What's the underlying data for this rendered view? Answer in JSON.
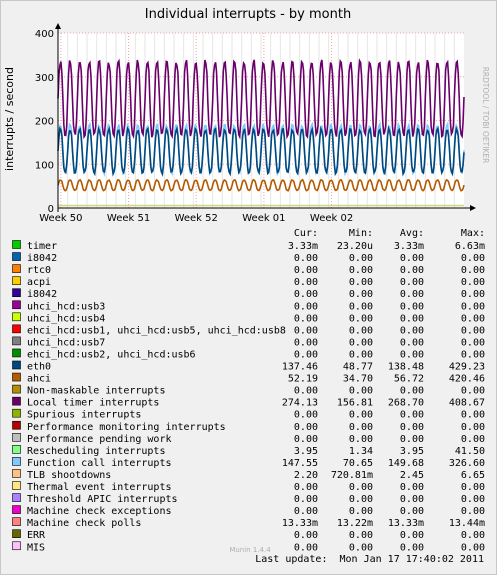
{
  "chart_data": {
    "type": "line",
    "title": "Individual interrupts - by month",
    "ylabel": "interrupts / second",
    "watermark": "RRDTOOL / TOBI OETIKER",
    "ylim": [
      0,
      400
    ],
    "y_ticks": [
      "0",
      "100",
      "200",
      "300",
      "400"
    ],
    "x_ticks": [
      "Week 50",
      "Week 51",
      "Week 52",
      "Week 01",
      "Week 02"
    ],
    "grid": true,
    "columns": [
      "Cur:",
      "Min:",
      "Avg:",
      "Max:"
    ],
    "series": [
      {
        "name": "timer",
        "color": "#00cc00",
        "cur": "3.33m",
        "min": "23.20u",
        "avg": "3.33m",
        "max": "6.63m"
      },
      {
        "name": "i8042",
        "color": "#0066b3",
        "cur": "0.00",
        "min": "0.00",
        "avg": "0.00",
        "max": "0.00"
      },
      {
        "name": "rtc0",
        "color": "#ff8000",
        "cur": "0.00",
        "min": "0.00",
        "avg": "0.00",
        "max": "0.00"
      },
      {
        "name": "acpi",
        "color": "#ffcc00",
        "cur": "0.00",
        "min": "0.00",
        "avg": "0.00",
        "max": "0.00"
      },
      {
        "name": "i8042",
        "color": "#330099",
        "cur": "0.00",
        "min": "0.00",
        "avg": "0.00",
        "max": "0.00"
      },
      {
        "name": "uhci_hcd:usb3",
        "color": "#990099",
        "cur": "0.00",
        "min": "0.00",
        "avg": "0.00",
        "max": "0.00"
      },
      {
        "name": "uhci_hcd:usb4",
        "color": "#ccff00",
        "cur": "0.00",
        "min": "0.00",
        "avg": "0.00",
        "max": "0.00"
      },
      {
        "name": "ehci_hcd:usb1, uhci_hcd:usb5, uhci_hcd:usb8",
        "color": "#ff0000",
        "cur": "0.00",
        "min": "0.00",
        "avg": "0.00",
        "max": "0.00"
      },
      {
        "name": "uhci_hcd:usb7",
        "color": "#808080",
        "cur": "0.00",
        "min": "0.00",
        "avg": "0.00",
        "max": "0.00"
      },
      {
        "name": "ehci_hcd:usb2, uhci_hcd:usb6",
        "color": "#008f00",
        "cur": "0.00",
        "min": "0.00",
        "avg": "0.00",
        "max": "0.00"
      },
      {
        "name": "eth0",
        "color": "#00487d",
        "cur": "137.46",
        "min": "48.77",
        "avg": "138.48",
        "max": "429.23"
      },
      {
        "name": "ahci",
        "color": "#b35a00",
        "cur": "52.19",
        "min": "34.70",
        "avg": "56.72",
        "max": "420.46"
      },
      {
        "name": "Non-maskable interrupts",
        "color": "#b38f00",
        "cur": "0.00",
        "min": "0.00",
        "avg": "0.00",
        "max": "0.00"
      },
      {
        "name": "Local timer interrupts",
        "color": "#6b006b",
        "cur": "274.13",
        "min": "156.81",
        "avg": "268.70",
        "max": "408.67"
      },
      {
        "name": "Spurious interrupts",
        "color": "#8fb300",
        "cur": "0.00",
        "min": "0.00",
        "avg": "0.00",
        "max": "0.00"
      },
      {
        "name": "Performance monitoring interrupts",
        "color": "#b30000",
        "cur": "0.00",
        "min": "0.00",
        "avg": "0.00",
        "max": "0.00"
      },
      {
        "name": "Performance pending work",
        "color": "#bebebe",
        "cur": "0.00",
        "min": "0.00",
        "avg": "0.00",
        "max": "0.00"
      },
      {
        "name": "Rescheduling interrupts",
        "color": "#80ff80",
        "cur": "3.95",
        "min": "1.34",
        "avg": "3.95",
        "max": "41.50"
      },
      {
        "name": "Function call interrupts",
        "color": "#80c9ff",
        "cur": "147.55",
        "min": "70.65",
        "avg": "149.68",
        "max": "326.60"
      },
      {
        "name": "TLB shootdowns",
        "color": "#ffc080",
        "cur": "2.20",
        "min": "720.81m",
        "avg": "2.45",
        "max": "6.65"
      },
      {
        "name": "Thermal event interrupts",
        "color": "#ffe680",
        "cur": "0.00",
        "min": "0.00",
        "avg": "0.00",
        "max": "0.00"
      },
      {
        "name": "Threshold APIC interrupts",
        "color": "#aa80ff",
        "cur": "0.00",
        "min": "0.00",
        "avg": "0.00",
        "max": "0.00"
      },
      {
        "name": "Machine check exceptions",
        "color": "#ee00cc",
        "cur": "0.00",
        "min": "0.00",
        "avg": "0.00",
        "max": "0.00"
      },
      {
        "name": "Machine check polls",
        "color": "#ff8080",
        "cur": "13.33m",
        "min": "13.22m",
        "avg": "13.33m",
        "max": "13.44m"
      },
      {
        "name": "ERR",
        "color": "#666600",
        "cur": "0.00",
        "min": "0.00",
        "avg": "0.00",
        "max": "0.00"
      },
      {
        "name": "MIS",
        "color": "#ffbfff",
        "cur": "0.00",
        "min": "0.00",
        "avg": "0.00",
        "max": "0.00"
      }
    ],
    "traces": {
      "Local timer interrupts": {
        "base": 250,
        "amp": 85,
        "period_days": 1.0
      },
      "Function call interrupts": {
        "base": 135,
        "amp": 55,
        "period_days": 1.0
      },
      "eth0": {
        "base": 130,
        "amp": 50,
        "period_days": 1.0
      },
      "ahci": {
        "base": 52,
        "amp": 12,
        "period_days": 1.0
      }
    },
    "footer": {
      "version": "Munin 1.4.4",
      "last_update": "Last update:  Mon Jan 17 17:40:02 2011"
    }
  }
}
